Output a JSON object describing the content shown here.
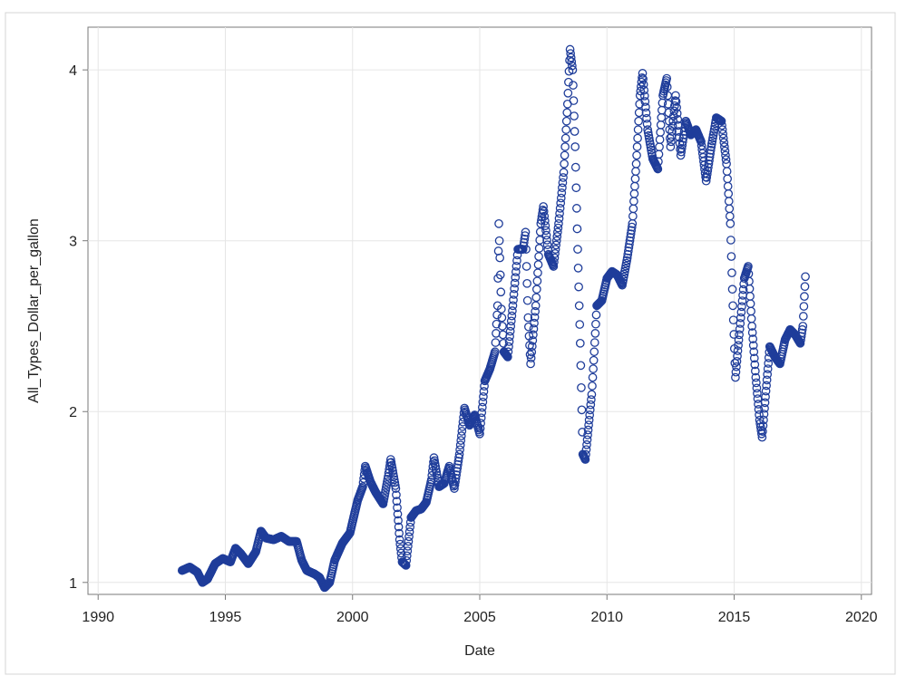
{
  "chart_data": {
    "type": "scatter",
    "title": "",
    "xlabel": "Date",
    "ylabel": "All_Types_Dollar_per_gallon",
    "xlim": [
      1989.6,
      2020.4
    ],
    "ylim": [
      0.93,
      4.25
    ],
    "xticks": [
      1990,
      1995,
      2000,
      2005,
      2010,
      2015,
      2020
    ],
    "xtick_labels": [
      "1990",
      "1995",
      "2000",
      "2005",
      "2010",
      "2015",
      "2020"
    ],
    "yticks": [
      1,
      2,
      3,
      4
    ],
    "ytick_labels": [
      "1",
      "2",
      "3",
      "4"
    ],
    "grid": true,
    "legend": "none",
    "marker": "open-circle",
    "colors": {
      "marker": "#1f3d9a",
      "grid": "#e6e6e6",
      "axis": "#7a7a7a",
      "border": "#d4d4d4"
    },
    "series": [
      {
        "points": [
          [
            1993.3,
            1.07
          ],
          [
            1993.6,
            1.09
          ],
          [
            1993.9,
            1.06
          ],
          [
            1994.1,
            1.0
          ],
          [
            1994.3,
            1.02
          ],
          [
            1994.6,
            1.11
          ],
          [
            1994.9,
            1.14
          ],
          [
            1995.2,
            1.12
          ],
          [
            1995.4,
            1.2
          ],
          [
            1995.6,
            1.17
          ],
          [
            1995.9,
            1.11
          ],
          [
            1996.2,
            1.18
          ],
          [
            1996.4,
            1.3
          ],
          [
            1996.6,
            1.26
          ],
          [
            1996.9,
            1.25
          ],
          [
            1997.2,
            1.27
          ],
          [
            1997.5,
            1.24
          ],
          [
            1997.8,
            1.24
          ],
          [
            1998.0,
            1.13
          ],
          [
            1998.2,
            1.07
          ],
          [
            1998.5,
            1.05
          ],
          [
            1998.7,
            1.03
          ],
          [
            1998.9,
            0.97
          ],
          [
            1999.1,
            1.0
          ],
          [
            1999.3,
            1.13
          ],
          [
            1999.6,
            1.23
          ],
          [
            1999.9,
            1.29
          ],
          [
            2000.2,
            1.48
          ],
          [
            2000.4,
            1.56
          ],
          [
            2000.5,
            1.68
          ],
          [
            2000.7,
            1.59
          ],
          [
            2000.9,
            1.53
          ],
          [
            2001.2,
            1.46
          ],
          [
            2001.4,
            1.62
          ],
          [
            2001.5,
            1.72
          ],
          [
            2001.7,
            1.55
          ],
          [
            2001.85,
            1.25
          ],
          [
            2001.95,
            1.12
          ],
          [
            2002.1,
            1.1
          ],
          [
            2002.3,
            1.38
          ],
          [
            2002.5,
            1.42
          ],
          [
            2002.7,
            1.43
          ],
          [
            2002.9,
            1.47
          ],
          [
            2003.1,
            1.6
          ],
          [
            2003.2,
            1.73
          ],
          [
            2003.4,
            1.56
          ],
          [
            2003.6,
            1.58
          ],
          [
            2003.8,
            1.68
          ],
          [
            2004.0,
            1.55
          ],
          [
            2004.2,
            1.75
          ],
          [
            2004.4,
            2.02
          ],
          [
            2004.6,
            1.92
          ],
          [
            2004.8,
            1.98
          ],
          [
            2005.0,
            1.87
          ],
          [
            2005.2,
            2.18
          ],
          [
            2005.4,
            2.25
          ],
          [
            2005.6,
            2.35
          ],
          [
            2005.7,
            2.62
          ],
          [
            2005.75,
            3.1
          ],
          [
            2005.85,
            2.6
          ],
          [
            2005.95,
            2.35
          ],
          [
            2006.1,
            2.32
          ],
          [
            2006.3,
            2.62
          ],
          [
            2006.5,
            2.95
          ],
          [
            2006.7,
            2.95
          ],
          [
            2006.8,
            3.05
          ],
          [
            2006.9,
            2.55
          ],
          [
            2007.0,
            2.28
          ],
          [
            2007.2,
            2.62
          ],
          [
            2007.4,
            3.1
          ],
          [
            2007.5,
            3.2
          ],
          [
            2007.7,
            2.92
          ],
          [
            2007.9,
            2.85
          ],
          [
            2008.1,
            3.1
          ],
          [
            2008.3,
            3.4
          ],
          [
            2008.45,
            3.8
          ],
          [
            2008.55,
            4.12
          ],
          [
            2008.65,
            4.0
          ],
          [
            2008.75,
            3.55
          ],
          [
            2008.85,
            2.95
          ],
          [
            2008.95,
            2.4
          ],
          [
            2009.05,
            1.75
          ],
          [
            2009.15,
            1.72
          ],
          [
            2009.3,
            1.95
          ],
          [
            2009.4,
            2.1
          ],
          [
            2009.5,
            2.35
          ],
          [
            2009.6,
            2.62
          ],
          [
            2009.8,
            2.65
          ],
          [
            2010.0,
            2.78
          ],
          [
            2010.2,
            2.82
          ],
          [
            2010.4,
            2.8
          ],
          [
            2010.6,
            2.74
          ],
          [
            2010.8,
            2.9
          ],
          [
            2011.0,
            3.1
          ],
          [
            2011.15,
            3.45
          ],
          [
            2011.3,
            3.85
          ],
          [
            2011.4,
            3.98
          ],
          [
            2011.6,
            3.65
          ],
          [
            2011.8,
            3.48
          ],
          [
            2012.0,
            3.42
          ],
          [
            2012.2,
            3.85
          ],
          [
            2012.35,
            3.95
          ],
          [
            2012.5,
            3.55
          ],
          [
            2012.7,
            3.85
          ],
          [
            2012.9,
            3.5
          ],
          [
            2013.1,
            3.7
          ],
          [
            2013.3,
            3.62
          ],
          [
            2013.5,
            3.65
          ],
          [
            2013.7,
            3.58
          ],
          [
            2013.9,
            3.35
          ],
          [
            2014.1,
            3.55
          ],
          [
            2014.3,
            3.72
          ],
          [
            2014.5,
            3.7
          ],
          [
            2014.7,
            3.45
          ],
          [
            2014.85,
            3.1
          ],
          [
            2014.95,
            2.62
          ],
          [
            2015.05,
            2.2
          ],
          [
            2015.2,
            2.45
          ],
          [
            2015.4,
            2.78
          ],
          [
            2015.55,
            2.85
          ],
          [
            2015.7,
            2.5
          ],
          [
            2015.85,
            2.2
          ],
          [
            2016.0,
            1.95
          ],
          [
            2016.1,
            1.85
          ],
          [
            2016.25,
            2.12
          ],
          [
            2016.4,
            2.38
          ],
          [
            2016.6,
            2.32
          ],
          [
            2016.8,
            2.28
          ],
          [
            2017.0,
            2.42
          ],
          [
            2017.2,
            2.48
          ],
          [
            2017.4,
            2.45
          ],
          [
            2017.6,
            2.4
          ],
          [
            2017.7,
            2.5
          ],
          [
            2017.8,
            2.79
          ]
        ]
      }
    ]
  }
}
